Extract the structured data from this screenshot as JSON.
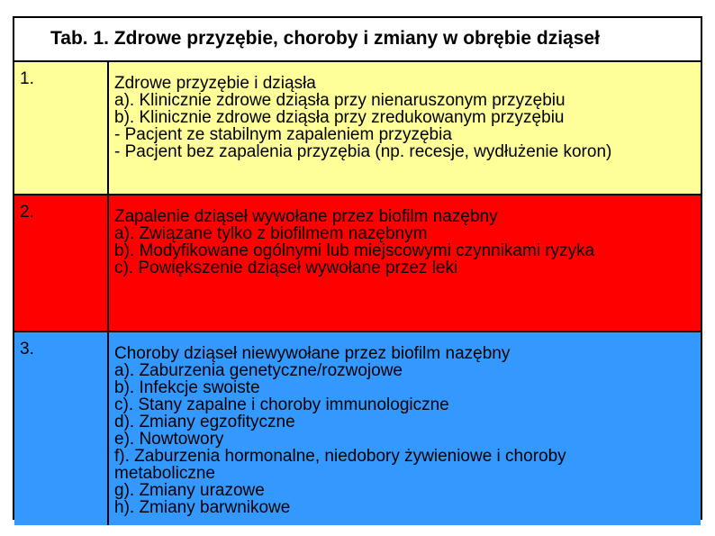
{
  "table": {
    "title": "Tab. 1. Zdrowe przyzębie, choroby i zmiany w obrębie dziąseł",
    "rows": [
      {
        "num": "1.",
        "bg": "#ffff99",
        "lines": [
          {
            "text": "Zdrowe przyzębie i dziąsła",
            "indent": 0
          },
          {
            "text": "a). Klinicznie zdrowe dziąsła przy nienaruszonym przyzębiu",
            "indent": 1
          },
          {
            "text": "b). Klinicznie zdrowe dziąsła przy zredukowanym przyzębiu",
            "indent": 1
          },
          {
            "text": "- Pacjent ze stabilnym zapaleniem przyzębia",
            "indent": 2
          },
          {
            "text": "- Pacjent bez zapalenia przyzębia (np. recesje, wydłużenie koron)",
            "indent": 2
          }
        ]
      },
      {
        "num": "2.",
        "bg": "#ff0000",
        "lines": [
          {
            "text": "Zapalenie dziąseł wywołane przez biofilm nazębny",
            "indent": 0
          },
          {
            "text": "a). Związane tylko z biofilmem nazębnym",
            "indent": 1
          },
          {
            "text": "b). Modyfikowane ogólnymi lub miejscowymi czynnikami ryzyka",
            "indent": 1
          },
          {
            "text": "c). Powiększenie dziąseł wywołane przez leki",
            "indent": 1
          }
        ]
      },
      {
        "num": "3.",
        "bg": "#3399ff",
        "lines": [
          {
            "text": "Choroby dziąseł niewywołane przez biofilm nazębny",
            "indent": 0
          },
          {
            "text": "a). Zaburzenia genetyczne/rozwojowe",
            "indent": 1
          },
          {
            "text": "b). Infekcje swoiste",
            "indent": 1
          },
          {
            "text": "c). Stany zapalne i choroby immunologiczne",
            "indent": 1
          },
          {
            "text": "d). Zmiany egzofityczne",
            "indent": 1
          },
          {
            "text": "e). Nowtowory",
            "indent": 1
          },
          {
            "text": "f).  Zaburzenia hormonalne, niedobory żywieniowe i choroby",
            "indent": 1
          },
          {
            "text": "metaboliczne",
            "indent": 1
          },
          {
            "text": "g). Zmiany urazowe",
            "indent": 1
          },
          {
            "text": "h). Zmiany barwnikowe",
            "indent": 1
          }
        ]
      }
    ]
  }
}
